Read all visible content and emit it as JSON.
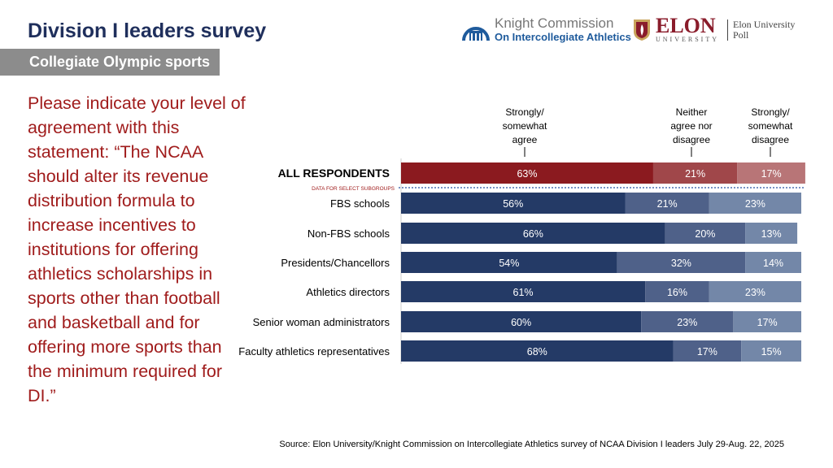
{
  "header": {
    "title": "Division I leaders survey",
    "subtitle": "Collegiate Olympic sports"
  },
  "question": "Please indicate your level of agreement with this statement: “The NCAA should alter its revenue distribution formula to increase incentives to institutions for offering athletics scholarships in sports other than football and basketball and for offering more sports than the minimum required for DI.”",
  "logos": {
    "knight_line1": "Knight Commission",
    "knight_line2": "On Intercollegiate Athletics",
    "elon": "ELON",
    "elon_sub": "UNIVERSITY",
    "poll_line1": "Elon University",
    "poll_line2": "Poll"
  },
  "source": "Source: Elon University/Knight Commission on Intercollegiate Athletics survey of NCAA Division I leaders July 29-Aug. 22, 2025",
  "chart_data": {
    "type": "bar",
    "orientation": "horizontal",
    "stacked": true,
    "legend": [
      "Strongly/ somewhat agree",
      "Neither agree nor disagree",
      "Strongly/ somewhat disagree"
    ],
    "divider_label": "DATA FOR SELECT SUBGROUPS",
    "categories": [
      "ALL RESPONDENTS",
      "FBS schools",
      "Non-FBS schools",
      "Presidents/Chancellors",
      "Athletics directors",
      "Senior woman administrators",
      "Faculty athletics representatives"
    ],
    "series": [
      {
        "name": "Strongly/ somewhat agree",
        "values": [
          63,
          56,
          66,
          54,
          61,
          60,
          68
        ]
      },
      {
        "name": "Neither agree nor disagree",
        "values": [
          21,
          21,
          20,
          32,
          16,
          23,
          17
        ]
      },
      {
        "name": "Strongly/ somewhat disagree",
        "values": [
          17,
          23,
          13,
          14,
          23,
          17,
          15
        ]
      }
    ],
    "colors": {
      "all": [
        "#8b1a1f",
        "#a0474a",
        "#b87577"
      ],
      "subgroups": [
        "#243a66",
        "#4f6189",
        "#7387a8"
      ]
    }
  }
}
